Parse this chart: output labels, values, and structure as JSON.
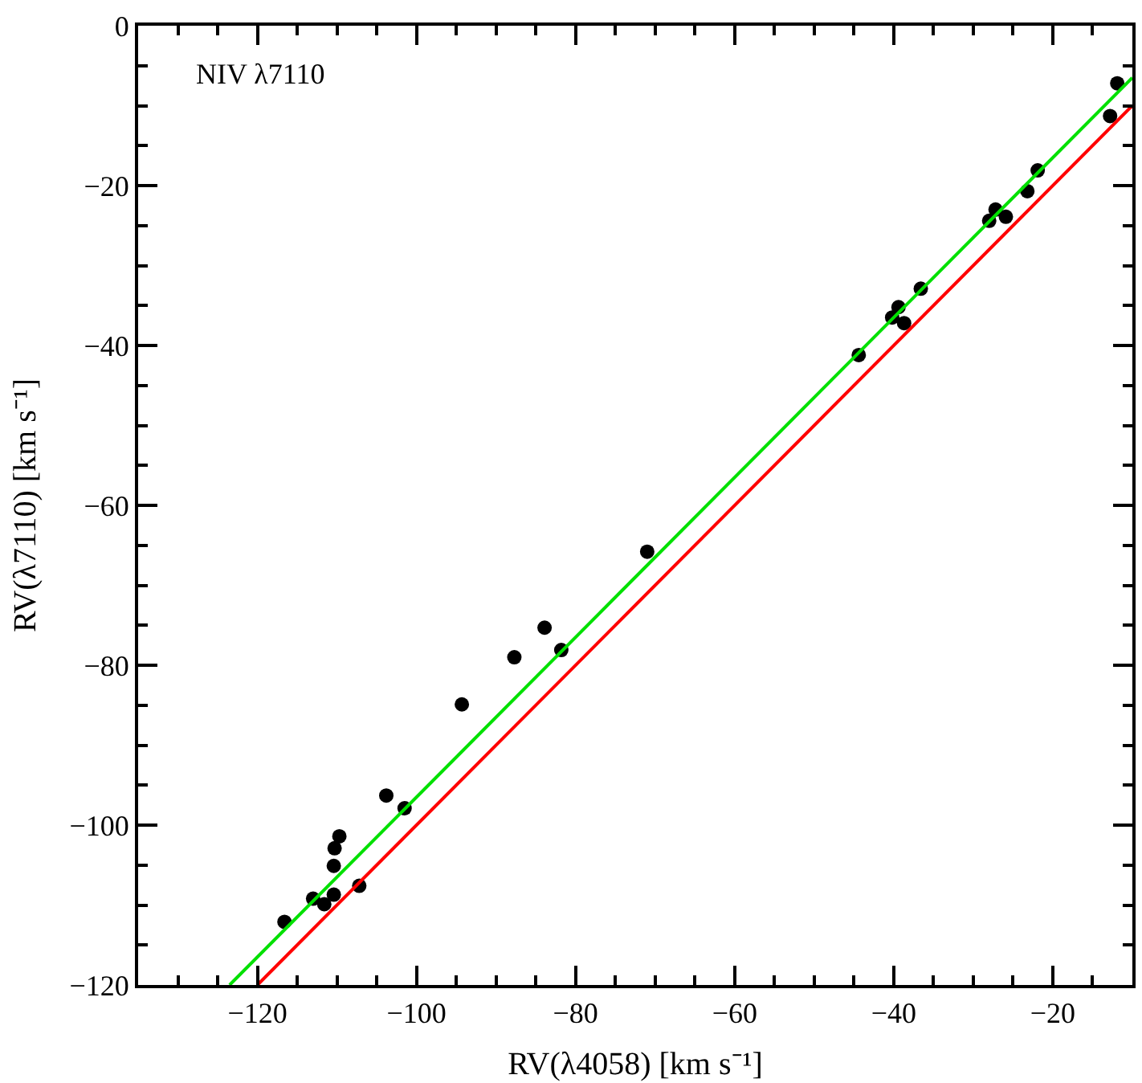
{
  "chart_data": {
    "type": "scatter",
    "xlabel": "RV(λ4058) [km s⁻¹]",
    "ylabel": "RV(λ7110) [km s⁻¹]",
    "annotations": [
      "NIV λ7110"
    ],
    "xlim": [
      -135,
      -10
    ],
    "ylim": [
      -120,
      0
    ],
    "xticks": [
      -120,
      -100,
      -80,
      -60,
      -40,
      -20
    ],
    "yticks": [
      -120,
      -100,
      -80,
      -60,
      -40,
      -20,
      0
    ],
    "series": [
      {
        "marker": "circle",
        "color": "#000000",
        "x": [
          -116.6,
          -113.0,
          -111.6,
          -110.4,
          -107.2,
          -110.4,
          -110.3,
          -109.7,
          -103.8,
          -101.5,
          -94.3,
          -87.7,
          -83.9,
          -81.8,
          -71.0,
          -44.4,
          -40.2,
          -39.4,
          -38.7,
          -36.6,
          -28.0,
          -27.2,
          -25.9,
          -23.2,
          -21.9,
          -12.8,
          -11.9
        ],
        "values": [
          -112.1,
          -109.2,
          -109.9,
          -108.7,
          -107.6,
          -105.1,
          -102.9,
          -101.4,
          -96.3,
          -97.9,
          -84.9,
          -79.0,
          -75.3,
          -78.1,
          -65.8,
          -41.2,
          -36.5,
          -35.2,
          -37.2,
          -32.9,
          -24.4,
          -23.0,
          -23.9,
          -20.7,
          -18.1,
          -11.3,
          -7.2
        ]
      },
      {
        "type": "line",
        "color": "#ff0000",
        "x": [
          -120,
          -10
        ],
        "values": [
          -120,
          -10
        ]
      },
      {
        "type": "line",
        "color": "#00e000",
        "x": [
          -123.5,
          -10
        ],
        "values": [
          -120,
          -6.5
        ]
      }
    ]
  }
}
